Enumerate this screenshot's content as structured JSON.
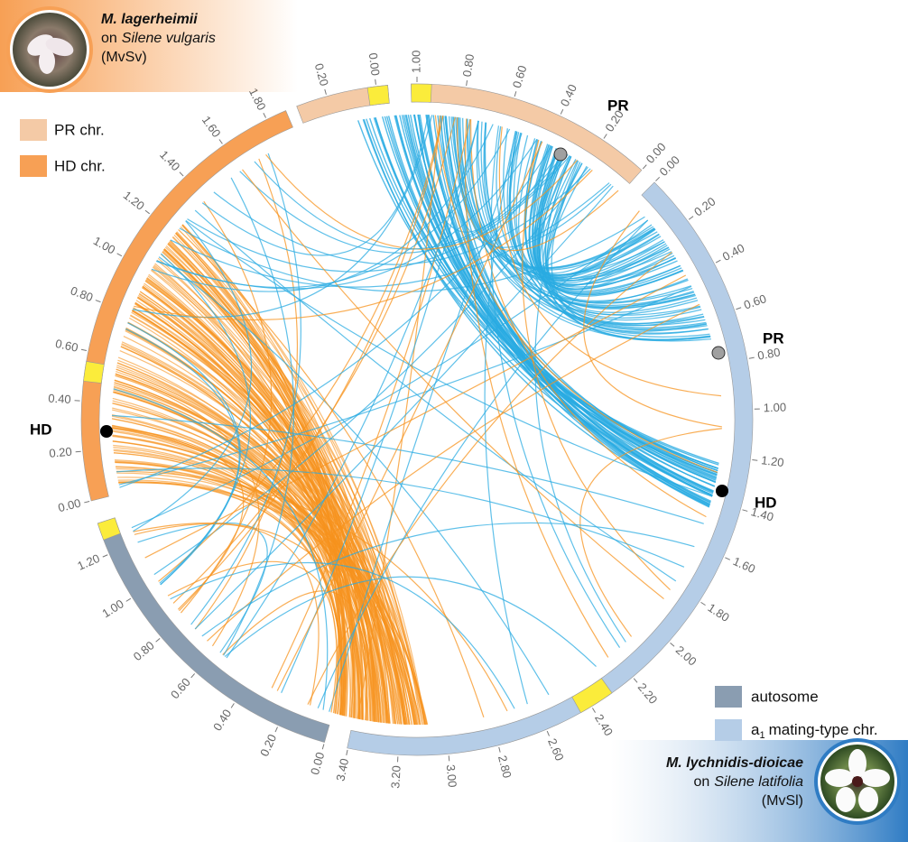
{
  "top_species": {
    "name": "M. lagerheimii",
    "host_prefix": "on",
    "host": "Silene vulgaris",
    "code": "(MvSv)"
  },
  "bottom_species": {
    "name": "M. lychnidis-dioicae",
    "host_prefix": "on",
    "host": "Silene latifolia",
    "code": "(MvSl)"
  },
  "legend_top": [
    {
      "label": "PR chr.",
      "color": "#f4caa6"
    },
    {
      "label": "HD chr.",
      "color": "#f7a055"
    }
  ],
  "legend_bottom": [
    {
      "label": "autosome",
      "color": "#8a9db1"
    },
    {
      "base": "a",
      "sub": "1",
      "rest": "mating-type chr.",
      "color": "#b5cde7"
    }
  ],
  "locus_labels": {
    "pr_top": "PR",
    "hd_left": "HD",
    "pr_right": "PR",
    "hd_right": "HD"
  },
  "segments": [
    {
      "color": "#f4caa6",
      "ticks": [
        {
          "value": 0.2,
          "label": "0.20"
        },
        {
          "value": 0,
          "label": "0.00"
        }
      ]
    },
    {
      "color": "#f4caa6",
      "ticks": [
        {
          "value": 0,
          "label": "0.00"
        },
        {
          "value": 0.2,
          "label": "0.20"
        },
        {
          "value": 0.4,
          "label": "0.40"
        },
        {
          "value": 0.6,
          "label": "0.60"
        },
        {
          "value": 0.8,
          "label": "0.80"
        },
        {
          "value": 1,
          "label": "1.00"
        }
      ]
    },
    {
      "color": "#b5cde7",
      "ticks": [
        {
          "value": 0,
          "label": "0.00"
        },
        {
          "value": 0.2,
          "label": "0.20"
        },
        {
          "value": 0.4,
          "label": "0.40"
        },
        {
          "value": 0.6,
          "label": "0.60"
        },
        {
          "value": 0.8,
          "label": "0.80"
        },
        {
          "value": 1,
          "label": "1.00"
        },
        {
          "value": 1.2,
          "label": "1.20"
        },
        {
          "value": 1.4,
          "label": "1.40"
        },
        {
          "value": 1.6,
          "label": "1.60"
        },
        {
          "value": 1.8,
          "label": "1.80"
        },
        {
          "value": 2,
          "label": "2.00"
        },
        {
          "value": 2.2,
          "label": "2.20"
        },
        {
          "value": 2.4,
          "label": "2.40"
        },
        {
          "value": 2.6,
          "label": "2.60"
        },
        {
          "value": 2.8,
          "label": "2.80"
        },
        {
          "value": 3,
          "label": "3.00"
        },
        {
          "value": 3.2,
          "label": "3.20"
        },
        {
          "value": 3.4,
          "label": "3.40"
        }
      ]
    },
    {
      "color": "#8a9db1",
      "ticks": [
        {
          "value": 0,
          "label": "0.00"
        },
        {
          "value": 0.2,
          "label": "0.20"
        },
        {
          "value": 0.4,
          "label": "0.40"
        },
        {
          "value": 0.6,
          "label": "0.60"
        },
        {
          "value": 0.8,
          "label": "0.80"
        },
        {
          "value": 1,
          "label": "1.00"
        },
        {
          "value": 1.2,
          "label": "1.20"
        }
      ]
    },
    {
      "color": "#f7a055",
      "ticks": [
        {
          "value": 0,
          "label": "0.00"
        },
        {
          "value": 0.2,
          "label": "0.20"
        },
        {
          "value": 0.4,
          "label": "0.40"
        },
        {
          "value": 0.6,
          "label": "0.60"
        },
        {
          "value": 0.8,
          "label": "0.80"
        },
        {
          "value": 1,
          "label": "1.00"
        },
        {
          "value": 1.2,
          "label": "1.20"
        },
        {
          "value": 1.4,
          "label": "1.40"
        },
        {
          "value": 1.6,
          "label": "1.60"
        },
        {
          "value": 1.8,
          "label": "1.80"
        }
      ]
    }
  ]
}
